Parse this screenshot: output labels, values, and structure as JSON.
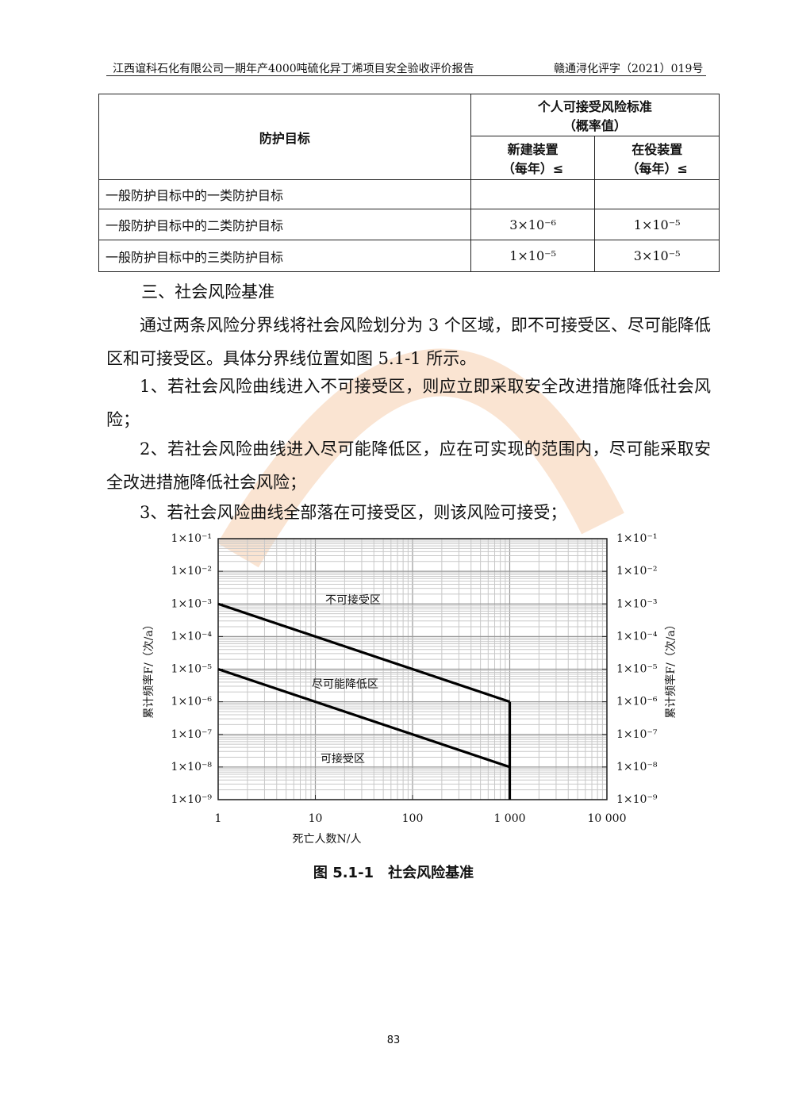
{
  "header": {
    "left": "江西谊科石化有限公司一期年产4000吨硫化异丁烯项目安全验收评价报告",
    "right": "赣通浔化评字（2021）019号"
  },
  "table": {
    "header": {
      "target": "防护目标",
      "standard": [
        "个人可接受风险标准",
        "（概率值）"
      ],
      "new": [
        "新建装置",
        "（每年）≤"
      ],
      "existing": [
        "在役装置",
        "（每年）≤"
      ]
    },
    "rows": [
      [
        "一般防护目标中的一类防护目标",
        null,
        null
      ],
      [
        "一般防护目标中的二类防护目标",
        "3×10⁻⁶",
        "1×10⁻⁵"
      ],
      [
        "一般防护目标中的三类防护目标",
        "1×10⁻⁵",
        "3×10⁻⁵"
      ]
    ]
  },
  "section_title": "三、社会风险基准",
  "paragraphs": [
    "通过两条风险分界线将社会风险划分为 3 个区域，即不可接受区、尽可能降低区和可接受区。具体分界线位置如图 5.1-1 所示。",
    "1、若社会风险曲线进入不可接受区，则应立即采取安全改进措施降低社会风险；",
    "2、若社会风险曲线进入尽可能降低区，应在可实现的范围内，尽可能采取安全改进措施降低社会风险；",
    "3、若社会风险曲线全部落在可接受区，则该风险可接受；"
  ],
  "chart_data": {
    "type": "line",
    "x_label": "死亡人数N/人",
    "y_label": "累计频率F/（次/a）",
    "log_x": true,
    "log_y": true,
    "grid": true,
    "xlim": [
      1,
      10000
    ],
    "xticks": [
      1,
      10,
      100,
      {
        "value": 1000,
        "label": "1 000"
      },
      {
        "value": 10000,
        "label": "10 000"
      }
    ],
    "ylim": [
      1e-09,
      0.1
    ],
    "yticks": [
      {
        "value": 1e-09,
        "label": "1×10⁻⁹"
      },
      {
        "value": 1e-08,
        "label": "1×10⁻⁸"
      },
      {
        "value": 1e-07,
        "label": "1×10⁻⁷"
      },
      {
        "value": 1e-06,
        "label": "1×10⁻⁶"
      },
      {
        "value": 1e-05,
        "label": "1×10⁻⁵"
      },
      {
        "value": 0.0001,
        "label": "1×10⁻⁴"
      },
      {
        "value": 0.001,
        "label": "1×10⁻³"
      },
      {
        "value": 0.01,
        "label": "1×10⁻²"
      },
      {
        "value": 0.1,
        "label": "1×10⁻¹"
      }
    ],
    "series": [
      {
        "color": "#000000",
        "x": [
          1,
          1000
        ],
        "values": [
          0.001,
          1e-06
        ]
      },
      {
        "color": "#000000",
        "x": [
          1,
          1000
        ],
        "values": [
          1e-05,
          1e-08
        ]
      },
      {
        "color": "#000000",
        "x": [
          1000,
          1000
        ],
        "values": [
          1e-06,
          1e-09
        ]
      }
    ],
    "annotations": [
      "不可接受区",
      "尽可能降低区",
      "可接受区"
    ],
    "caption": "图 5.1-1　社会风险基准"
  },
  "page_number": "83"
}
